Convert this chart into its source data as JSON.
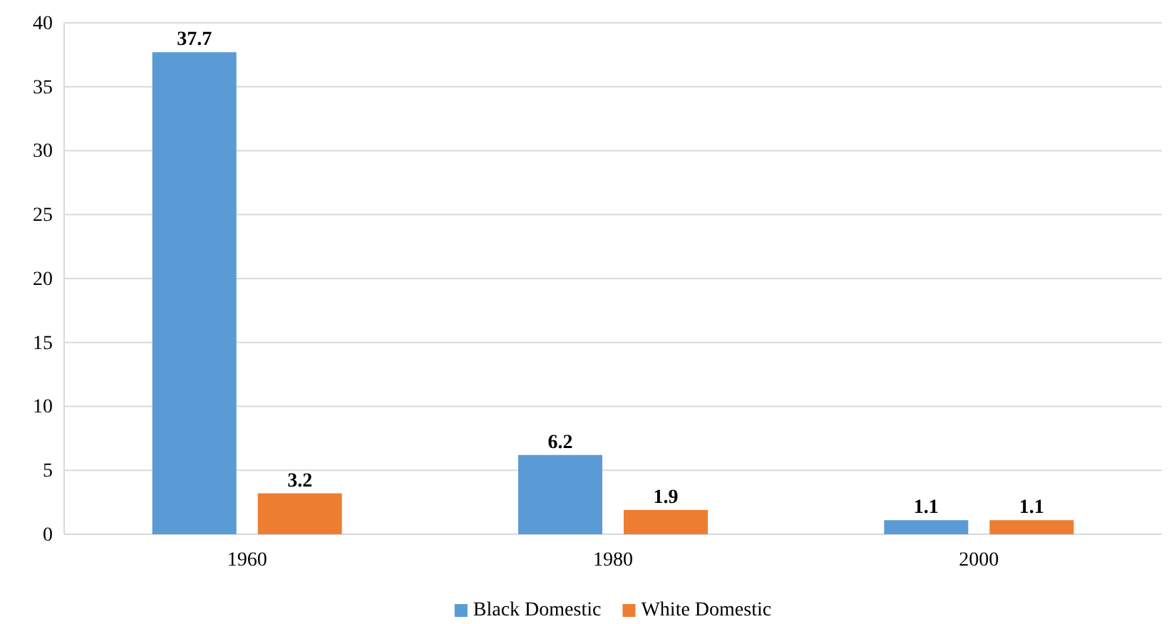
{
  "chart_data": {
    "type": "bar",
    "categories": [
      "1960",
      "1980",
      "2000"
    ],
    "series": [
      {
        "name": "Black Domestic",
        "color": "#5b9bd5",
        "values": [
          37.7,
          6.2,
          1.1
        ]
      },
      {
        "name": "White Domestic",
        "color": "#ed7d31",
        "values": [
          3.2,
          1.9,
          1.1
        ]
      }
    ],
    "ylim": [
      0,
      40
    ],
    "yticks": [
      0,
      5,
      10,
      15,
      20,
      25,
      30,
      35,
      40
    ],
    "grid": "y",
    "legend": "bottom",
    "data_labels": true
  }
}
